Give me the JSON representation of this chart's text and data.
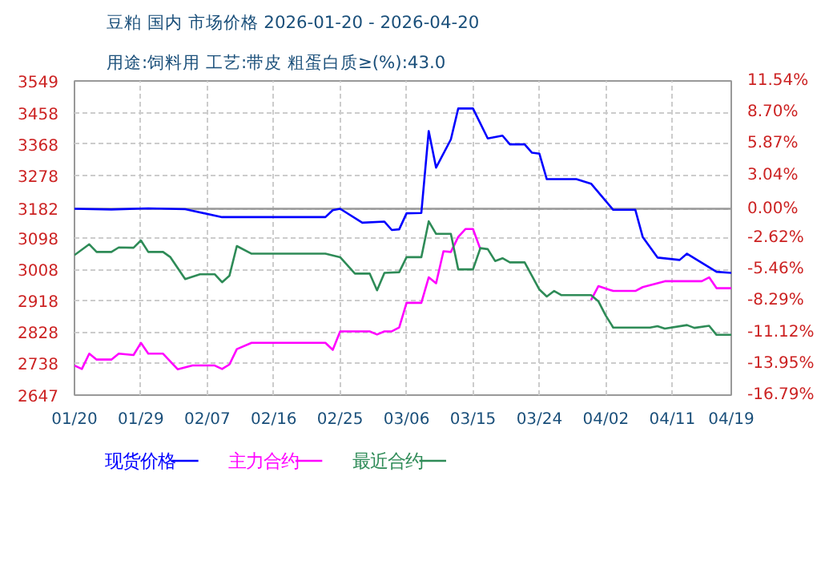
{
  "chart_data": {
    "type": "line",
    "title": "豆粕 国内 市场价格 2026-01-20 - 2026-04-20",
    "subtitle": "用途:饲料用 工艺:带皮 粗蛋白质≥(%):43.0",
    "xlim": [
      "2026-01-20",
      "2026-04-19"
    ],
    "xticks": [
      {
        "value": "2026-01-20",
        "label": "01/20"
      },
      {
        "value": "2026-01-29",
        "label": "01/29"
      },
      {
        "value": "2026-02-07",
        "label": "02/07"
      },
      {
        "value": "2026-02-16",
        "label": "02/16"
      },
      {
        "value": "2026-02-25",
        "label": "02/25"
      },
      {
        "value": "2026-03-06",
        "label": "03/06"
      },
      {
        "value": "2026-03-15",
        "label": "03/15"
      },
      {
        "value": "2026-03-24",
        "label": "03/24"
      },
      {
        "value": "2026-04-02",
        "label": "04/02"
      },
      {
        "value": "2026-04-11",
        "label": "04/11"
      },
      {
        "value": "2026-04-19",
        "label": "04/19"
      }
    ],
    "ylim": [
      2647,
      3549
    ],
    "yticks": [
      2647,
      2738,
      2828,
      2918,
      3008,
      3098,
      3182,
      3278,
      3368,
      3458,
      3549
    ],
    "y2lim": [
      -16.79,
      11.54
    ],
    "y2ticks": [
      {
        "value": -16.79,
        "label": "-16.79%"
      },
      {
        "value": -13.95,
        "label": "-13.95%"
      },
      {
        "value": -11.12,
        "label": "-11.12%"
      },
      {
        "value": -8.29,
        "label": "-8.29%"
      },
      {
        "value": -5.46,
        "label": "-5.46%"
      },
      {
        "value": -2.62,
        "label": "-2.62%"
      },
      {
        "value": 0,
        "label": "0.00%"
      },
      {
        "value": 3.04,
        "label": "3.04%"
      },
      {
        "value": 5.87,
        "label": "5.87%"
      },
      {
        "value": 8.7,
        "label": "8.70%"
      },
      {
        "value": 11.54,
        "label": "11.54%"
      }
    ],
    "grid": true,
    "legend": "bottom left",
    "line_style": "solid",
    "ref_lines": [
      {
        "axis": "y",
        "value": 3182,
        "color": "#999999"
      }
    ],
    "series": [
      {
        "name": "现货价格",
        "color": "#0000ff",
        "x": [
          "2026-01-20",
          "2026-01-25",
          "2026-01-30",
          "2026-02-04",
          "2026-02-09",
          "2026-02-23",
          "2026-02-24",
          "2026-02-25",
          "2026-02-28",
          "2026-03-03",
          "2026-03-04",
          "2026-03-05",
          "2026-03-06",
          "2026-03-08",
          "2026-03-09",
          "2026-03-10",
          "2026-03-12",
          "2026-03-13",
          "2026-03-15",
          "2026-03-17",
          "2026-03-19",
          "2026-03-20",
          "2026-03-22",
          "2026-03-23",
          "2026-03-24",
          "2026-03-25",
          "2026-03-29",
          "2026-03-31",
          "2026-04-03",
          "2026-04-06",
          "2026-04-07",
          "2026-04-09",
          "2026-04-12",
          "2026-04-13",
          "2026-04-17",
          "2026-04-19"
        ],
        "values": [
          3182,
          3180,
          3183,
          3181,
          3158,
          3158,
          3178,
          3182,
          3142,
          3145,
          3121,
          3123,
          3169,
          3170,
          3405,
          3300,
          3381,
          3470,
          3470,
          3384,
          3392,
          3367,
          3367,
          3343,
          3340,
          3267,
          3267,
          3254,
          3179,
          3179,
          3101,
          3042,
          3035,
          3053,
          3001,
          2998
        ]
      },
      {
        "name": "主力合约",
        "color": "#ff00ff",
        "x": [
          "2026-01-20",
          "2026-01-21",
          "2026-01-22",
          "2026-01-23",
          "2026-01-25",
          "2026-01-26",
          "2026-01-28",
          "2026-01-29",
          "2026-01-30",
          "2026-02-01",
          "2026-02-03",
          "2026-02-05",
          "2026-02-08",
          "2026-02-09",
          "2026-02-10",
          "2026-02-11",
          "2026-02-13",
          "2026-02-23",
          "2026-02-24",
          "2026-02-25",
          "2026-03-01",
          "2026-03-02",
          "2026-03-03",
          "2026-03-04",
          "2026-03-05",
          "2026-03-06",
          "2026-03-08",
          "2026-03-09",
          "2026-03-10",
          "2026-03-11",
          "2026-03-12",
          "2026-03-13",
          "2026-03-14",
          "2026-03-15",
          "2026-03-16",
          "2026-03-23",
          "2026-03-31",
          "2026-04-01",
          "2026-04-03",
          "2026-04-06",
          "2026-04-07",
          "2026-04-10",
          "2026-04-15",
          "2026-04-16",
          "2026-04-17",
          "2026-04-19"
        ],
        "values": [
          2732,
          2722,
          2766,
          2749,
          2749,
          2766,
          2762,
          2797,
          2766,
          2766,
          2721,
          2732,
          2732,
          2722,
          2735,
          2779,
          2797,
          2797,
          2777,
          2830,
          2830,
          2821,
          2830,
          2830,
          2841,
          2912,
          2912,
          2985,
          2968,
          3060,
          3058,
          3101,
          3124,
          3124,
          3066,
          null,
          2920,
          2960,
          2946,
          2946,
          2957,
          2974,
          2974,
          2985,
          2954,
          2954
        ]
      },
      {
        "name": "最近合约",
        "color": "#2e8b57",
        "x": [
          "2026-01-20",
          "2026-01-22",
          "2026-01-23",
          "2026-01-25",
          "2026-01-26",
          "2026-01-28",
          "2026-01-29",
          "2026-01-30",
          "2026-02-01",
          "2026-02-02",
          "2026-02-04",
          "2026-02-06",
          "2026-02-08",
          "2026-02-09",
          "2026-02-10",
          "2026-02-11",
          "2026-02-13",
          "2026-02-23",
          "2026-02-25",
          "2026-02-27",
          "2026-03-01",
          "2026-03-02",
          "2026-03-03",
          "2026-03-05",
          "2026-03-06",
          "2026-03-08",
          "2026-03-09",
          "2026-03-10",
          "2026-03-12",
          "2026-03-13",
          "2026-03-15",
          "2026-03-16",
          "2026-03-17",
          "2026-03-18",
          "2026-03-19",
          "2026-03-20",
          "2026-03-22",
          "2026-03-24",
          "2026-03-25",
          "2026-03-26",
          "2026-03-27",
          "2026-03-31",
          "2026-04-01",
          "2026-04-02",
          "2026-04-03",
          "2026-04-08",
          "2026-04-09",
          "2026-04-10",
          "2026-04-13",
          "2026-04-14",
          "2026-04-16",
          "2026-04-17",
          "2026-04-19"
        ],
        "values": [
          3049,
          3080,
          3058,
          3058,
          3071,
          3070,
          3091,
          3058,
          3058,
          3043,
          2980,
          2994,
          2994,
          2971,
          2990,
          3075,
          3053,
          3053,
          3043,
          2996,
          2996,
          2948,
          2998,
          3000,
          3043,
          3043,
          3146,
          3110,
          3110,
          3008,
          3008,
          3069,
          3066,
          3032,
          3040,
          3028,
          3028,
          2950,
          2930,
          2946,
          2934,
          2934,
          2916,
          2875,
          2841,
          2841,
          2845,
          2838,
          2848,
          2840,
          2846,
          2820,
          2820
        ]
      }
    ]
  }
}
